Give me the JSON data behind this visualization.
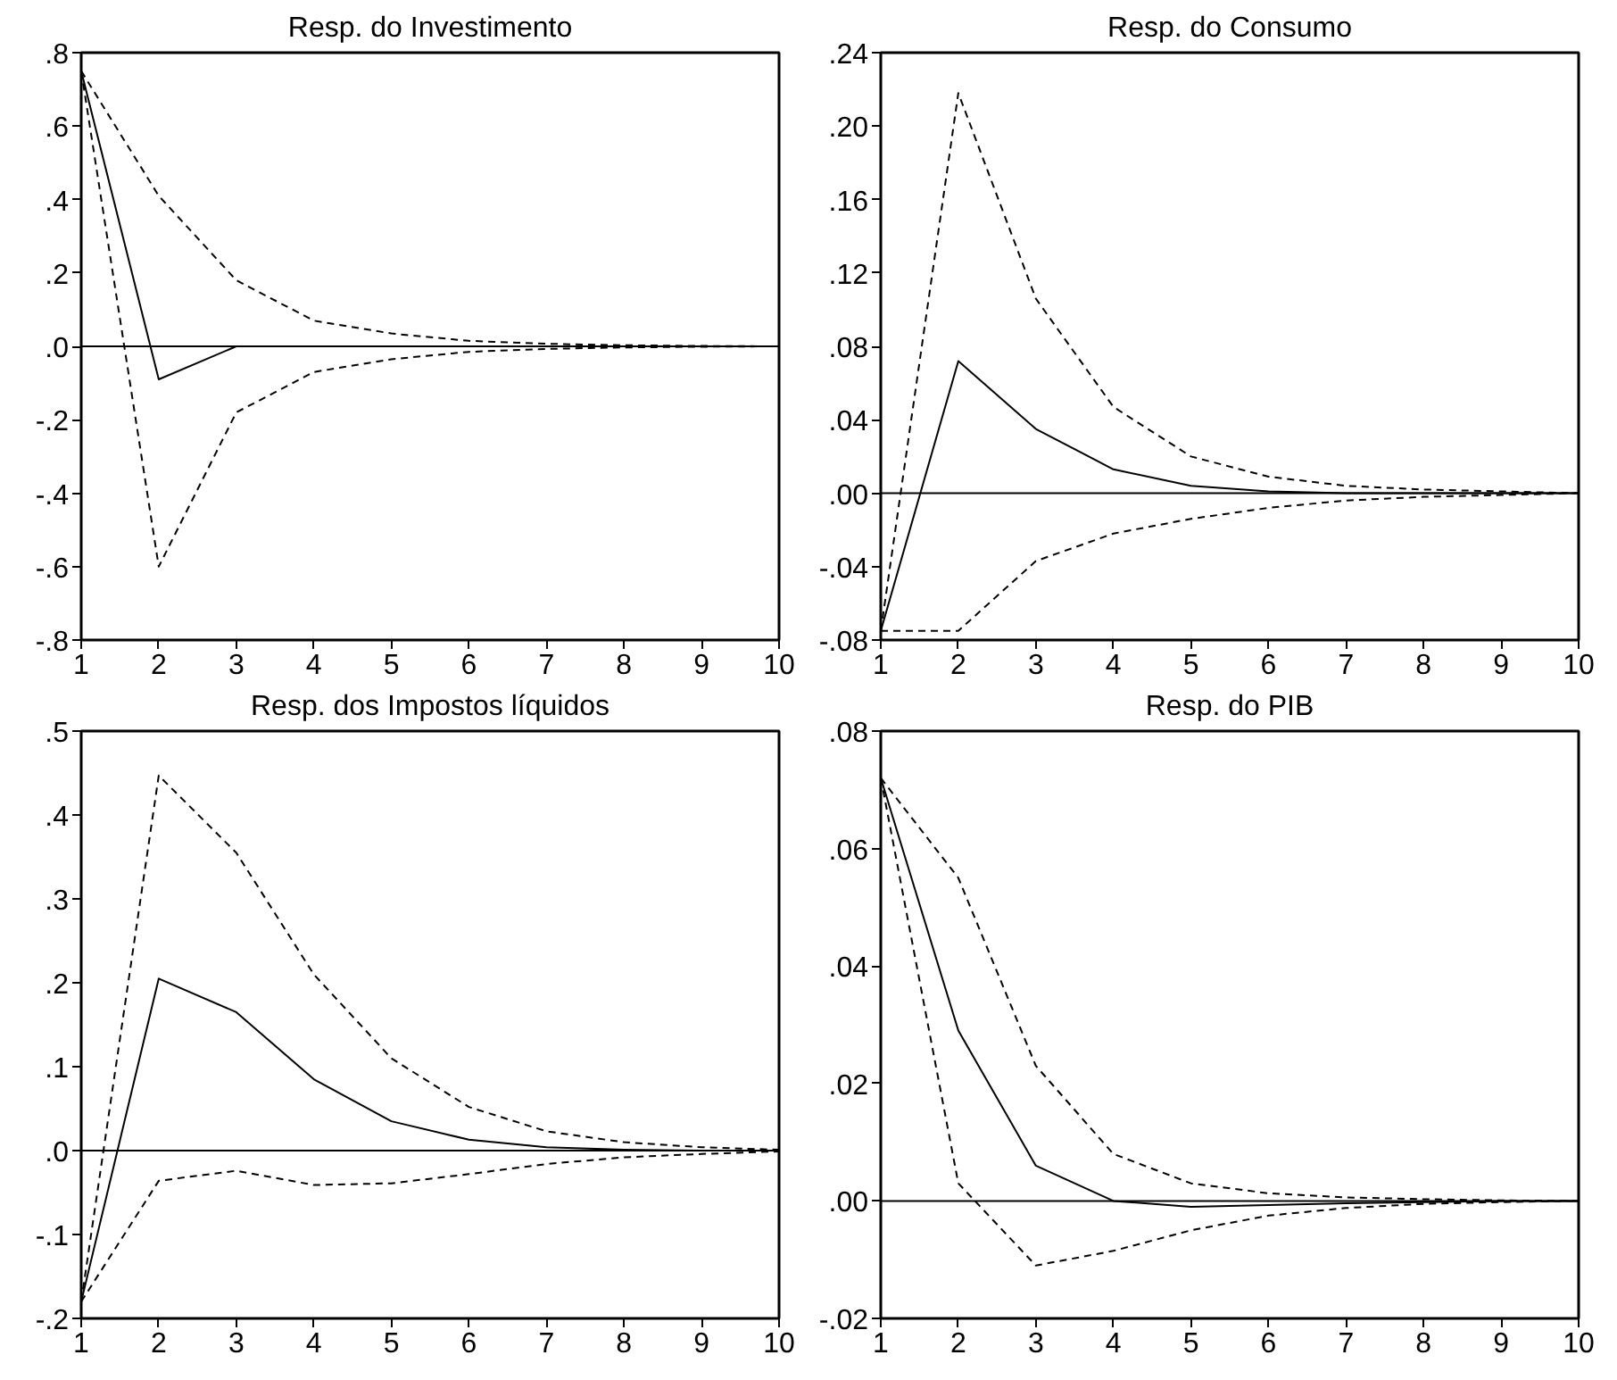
{
  "chart_data": [
    {
      "type": "line",
      "title": "Resp. do Investimento",
      "x": [
        1,
        2,
        3,
        4,
        5,
        6,
        7,
        8,
        9,
        10
      ],
      "xlim": [
        1,
        10
      ],
      "xticks": [
        1,
        2,
        3,
        4,
        5,
        6,
        7,
        8,
        9,
        10
      ],
      "ylim": [
        -0.8,
        0.8
      ],
      "yticks": [
        {
          "value": -0.8,
          "label": "-.8"
        },
        {
          "value": -0.6,
          "label": "-.6"
        },
        {
          "value": -0.4,
          "label": "-.4"
        },
        {
          "value": -0.2,
          "label": "-.2"
        },
        {
          "value": 0,
          "label": ".0"
        },
        {
          "value": 0.2,
          "label": ".2"
        },
        {
          "value": 0.4,
          "label": ".4"
        },
        {
          "value": 0.6,
          "label": ".6"
        },
        {
          "value": 0.8,
          "label": ".8"
        }
      ],
      "grid": false,
      "marker": "none",
      "ref_lines": [
        {
          "axis": "y",
          "value": 0,
          "color": "#000000",
          "line_style": "solid"
        }
      ],
      "series": [
        {
          "color": "#000000",
          "line_style": "solid",
          "values": [
            0.75,
            -0.09,
            0.0,
            0.0,
            0.0,
            0.0,
            0.0,
            0.0,
            0.0,
            0.0
          ]
        },
        {
          "color": "#000000",
          "line_style": "dashed",
          "values": [
            0.75,
            0.41,
            0.18,
            0.07,
            0.035,
            0.015,
            0.007,
            0.003,
            0.001,
            0.0
          ]
        },
        {
          "color": "#000000",
          "line_style": "dashed",
          "values": [
            0.75,
            -0.6,
            -0.18,
            -0.07,
            -0.035,
            -0.015,
            -0.007,
            -0.003,
            -0.001,
            0.0
          ]
        }
      ]
    },
    {
      "type": "line",
      "title": "Resp. do Consumo",
      "x": [
        1,
        2,
        3,
        4,
        5,
        6,
        7,
        8,
        9,
        10
      ],
      "xlim": [
        1,
        10
      ],
      "xticks": [
        1,
        2,
        3,
        4,
        5,
        6,
        7,
        8,
        9,
        10
      ],
      "ylim": [
        -0.08,
        0.24
      ],
      "yticks": [
        {
          "value": -0.08,
          "label": "-.08"
        },
        {
          "value": -0.04,
          "label": "-.04"
        },
        {
          "value": 0,
          "label": ".00"
        },
        {
          "value": 0.04,
          "label": ".04"
        },
        {
          "value": 0.08,
          "label": ".08"
        },
        {
          "value": 0.12,
          "label": ".12"
        },
        {
          "value": 0.16,
          "label": ".16"
        },
        {
          "value": 0.2,
          "label": ".20"
        },
        {
          "value": 0.24,
          "label": ".24"
        }
      ],
      "grid": false,
      "marker": "none",
      "ref_lines": [
        {
          "axis": "y",
          "value": 0,
          "color": "#000000",
          "line_style": "solid"
        }
      ],
      "series": [
        {
          "color": "#000000",
          "line_style": "solid",
          "values": [
            -0.075,
            0.072,
            0.035,
            0.013,
            0.004,
            0.001,
            0.0,
            0.0,
            0.0,
            0.0
          ]
        },
        {
          "color": "#000000",
          "line_style": "dashed",
          "values": [
            -0.075,
            0.218,
            0.106,
            0.047,
            0.02,
            0.009,
            0.004,
            0.002,
            0.001,
            0.0
          ]
        },
        {
          "color": "#000000",
          "line_style": "dashed",
          "values": [
            -0.075,
            -0.075,
            -0.037,
            -0.022,
            -0.014,
            -0.008,
            -0.004,
            -0.002,
            -0.001,
            0.0
          ]
        }
      ]
    },
    {
      "type": "line",
      "title": "Resp. dos Impostos líquidos",
      "x": [
        1,
        2,
        3,
        4,
        5,
        6,
        7,
        8,
        9,
        10
      ],
      "xlim": [
        1,
        10
      ],
      "xticks": [
        1,
        2,
        3,
        4,
        5,
        6,
        7,
        8,
        9,
        10
      ],
      "ylim": [
        -0.2,
        0.5
      ],
      "yticks": [
        {
          "value": -0.2,
          "label": "-.2"
        },
        {
          "value": -0.1,
          "label": "-.1"
        },
        {
          "value": 0,
          "label": ".0"
        },
        {
          "value": 0.1,
          "label": ".1"
        },
        {
          "value": 0.2,
          "label": ".2"
        },
        {
          "value": 0.3,
          "label": ".3"
        },
        {
          "value": 0.4,
          "label": ".4"
        },
        {
          "value": 0.5,
          "label": ".5"
        }
      ],
      "grid": false,
      "marker": "none",
      "ref_lines": [
        {
          "axis": "y",
          "value": 0,
          "color": "#000000",
          "line_style": "solid"
        }
      ],
      "series": [
        {
          "color": "#000000",
          "line_style": "solid",
          "values": [
            -0.18,
            0.205,
            0.165,
            0.085,
            0.035,
            0.013,
            0.004,
            0.001,
            0.0,
            0.0
          ]
        },
        {
          "color": "#000000",
          "line_style": "dashed",
          "values": [
            -0.18,
            0.447,
            0.355,
            0.21,
            0.11,
            0.052,
            0.023,
            0.01,
            0.004,
            0.001
          ]
        },
        {
          "color": "#000000",
          "line_style": "dashed",
          "values": [
            -0.18,
            -0.036,
            -0.024,
            -0.041,
            -0.039,
            -0.028,
            -0.016,
            -0.008,
            -0.004,
            -0.001
          ]
        }
      ]
    },
    {
      "type": "line",
      "title": "Resp. do PIB",
      "x": [
        1,
        2,
        3,
        4,
        5,
        6,
        7,
        8,
        9,
        10
      ],
      "xlim": [
        1,
        10
      ],
      "xticks": [
        1,
        2,
        3,
        4,
        5,
        6,
        7,
        8,
        9,
        10
      ],
      "ylim": [
        -0.02,
        0.08
      ],
      "yticks": [
        {
          "value": -0.02,
          "label": "-.02"
        },
        {
          "value": 0,
          "label": ".00"
        },
        {
          "value": 0.02,
          "label": ".02"
        },
        {
          "value": 0.04,
          "label": ".04"
        },
        {
          "value": 0.06,
          "label": ".06"
        },
        {
          "value": 0.08,
          "label": ".08"
        }
      ],
      "grid": false,
      "marker": "none",
      "ref_lines": [
        {
          "axis": "y",
          "value": 0,
          "color": "#000000",
          "line_style": "solid"
        }
      ],
      "series": [
        {
          "color": "#000000",
          "line_style": "solid",
          "values": [
            0.072,
            0.029,
            0.006,
            0.0,
            -0.001,
            -0.0007,
            -0.0004,
            -0.0002,
            0.0,
            0.0
          ]
        },
        {
          "color": "#000000",
          "line_style": "dashed",
          "values": [
            0.072,
            0.055,
            0.023,
            0.008,
            0.003,
            0.0013,
            0.0006,
            0.0003,
            0.0001,
            0.0
          ]
        },
        {
          "color": "#000000",
          "line_style": "dashed",
          "values": [
            0.072,
            0.003,
            -0.011,
            -0.0085,
            -0.005,
            -0.0025,
            -0.0012,
            -0.0005,
            -0.0002,
            0.0
          ]
        }
      ]
    }
  ]
}
